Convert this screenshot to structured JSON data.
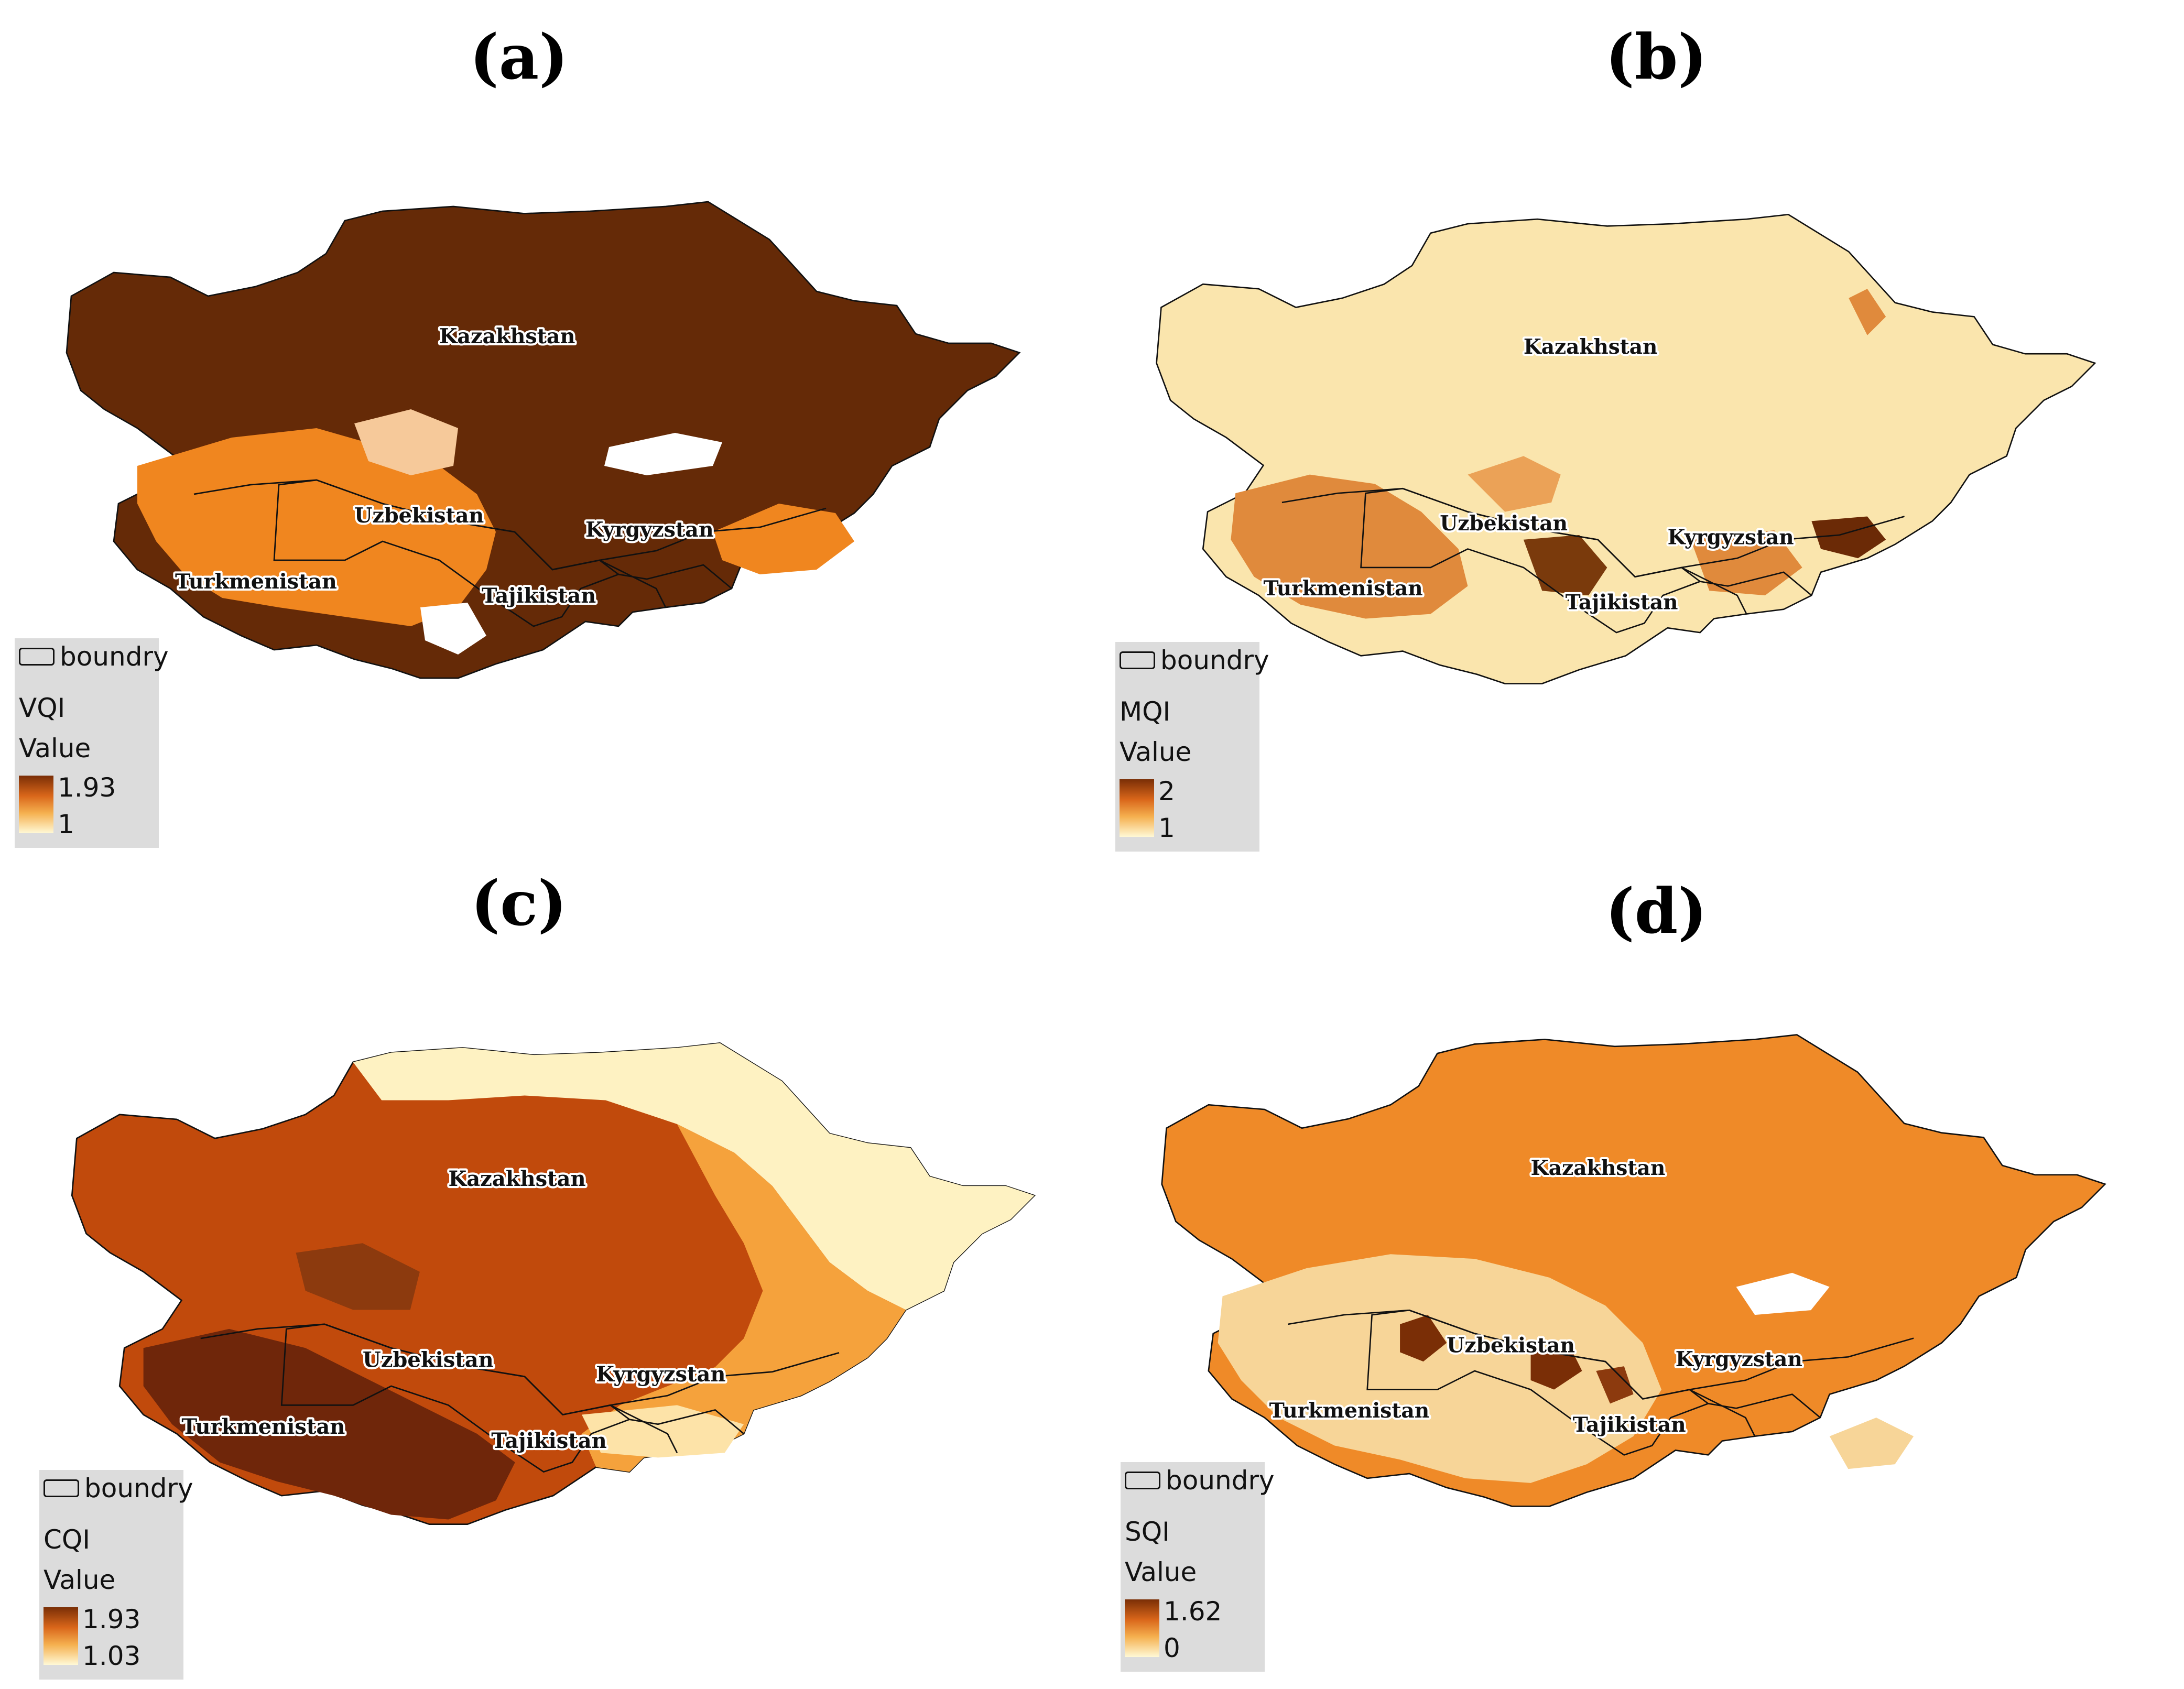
{
  "panels": [
    {
      "id": "a",
      "title": "(a)",
      "fill_color": "#652a07",
      "accent_colors": [
        "#f0861f",
        "#ffffff"
      ],
      "country_labels": [
        "Kazakhstan",
        "Uzbekistan",
        "Kyrgyzstan",
        "Turkmenistan",
        "Tajikistan"
      ],
      "legend": {
        "boundary_label": "boundry",
        "index_name": "VQI",
        "value_label": "Value",
        "max": "1.93",
        "min": "1"
      }
    },
    {
      "id": "b",
      "title": "(b)",
      "fill_color": "#fae5ad",
      "accent_colors": [
        "#e08a3c",
        "#7a3a0c"
      ],
      "country_labels": [
        "Kazakhstan",
        "Uzbekistan",
        "Kyrgyzstan",
        "Turkmenistan",
        "Tajikistan"
      ],
      "legend": {
        "boundary_label": "boundry",
        "index_name": "MQI",
        "value_label": "Value",
        "max": "2",
        "min": "1"
      }
    },
    {
      "id": "c",
      "title": "(c)",
      "fill_color": "#c14a0c",
      "accent_colors": [
        "#f5a23c",
        "#fef2c2",
        "#6f260a"
      ],
      "country_labels": [
        "Kazakhstan",
        "Uzbekistan",
        "Kyrgyzstan",
        "Turkmenistan",
        "Tajikistan"
      ],
      "legend": {
        "boundary_label": "boundry",
        "index_name": "CQI",
        "value_label": "Value",
        "max": "1.93",
        "min": "1.03"
      }
    },
    {
      "id": "d",
      "title": "(d)",
      "fill_color": "#ef8a28",
      "accent_colors": [
        "#f7d598",
        "#7a2e06"
      ],
      "country_labels": [
        "Kazakhstan",
        "Uzbekistan",
        "Kyrgyzstan",
        "Turkmenistan",
        "Tajikistan"
      ],
      "legend": {
        "boundary_label": "boundry",
        "index_name": "SQI",
        "value_label": "Value",
        "max": "1.62",
        "min": "0"
      }
    }
  ]
}
